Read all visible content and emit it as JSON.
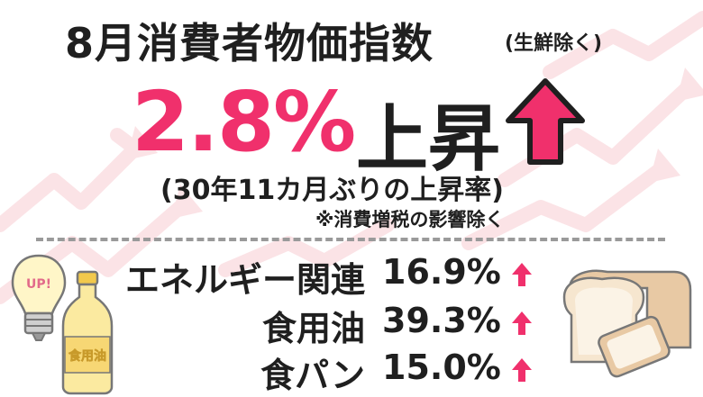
{
  "title": {
    "main": "8月消費者物価指数",
    "note": "(生鮮除く)"
  },
  "headline": {
    "value": "2.8%",
    "label": "上昇"
  },
  "sub_note": "(30年11カ月ぶりの上昇率)",
  "tax_note": "※消費増税の影響除く",
  "items": [
    {
      "label": "エネルギー関連",
      "value": "16.9%"
    },
    {
      "label": "食用油",
      "value": "39.3%"
    },
    {
      "label": "食パン",
      "value": "15.0%"
    }
  ],
  "illustrations": {
    "bulb_text": "UP!",
    "oil_text": "食用油"
  },
  "colors": {
    "accent": "#f0306c",
    "text": "#1f1f1f",
    "background_arrows": "#fbe3e6"
  },
  "icons": {
    "headline_arrow": "up-arrow-icon",
    "item_arrow": "up-arrow-icon",
    "bulb": "light-bulb-icon",
    "oil": "oil-bottle-icon",
    "bread": "bread-icon"
  }
}
